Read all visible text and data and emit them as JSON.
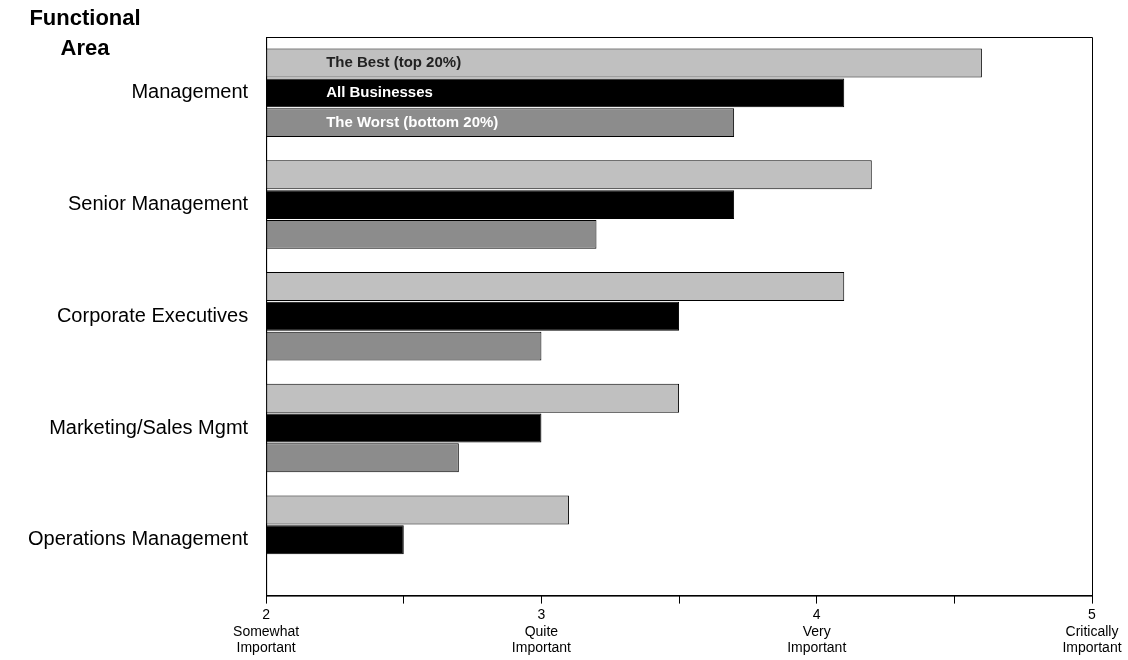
{
  "chart_data": {
    "type": "bar",
    "orientation": "horizontal",
    "ylabel": "Functional Area",
    "categories": [
      "Management",
      "Senior Management",
      "Corporate Executives",
      "Marketing/Sales Mgmt",
      "Operations Management"
    ],
    "series": [
      {
        "name": "The Best (top 20%)",
        "color": "#c0c0c0",
        "values": [
          4.6,
          4.2,
          4.1,
          3.5,
          3.1
        ]
      },
      {
        "name": "All Businesses",
        "color": "#000000",
        "values": [
          4.1,
          3.7,
          3.5,
          3.0,
          2.5
        ]
      },
      {
        "name": "The Worst (bottom 20%)",
        "color": "#8c8c8c",
        "values": [
          3.7,
          3.2,
          3.0,
          2.7,
          null
        ]
      }
    ],
    "xlim": [
      2,
      5
    ],
    "xticks": [
      {
        "value": 2,
        "label": "2\nSomewhat\nImportant"
      },
      {
        "value": 2.5,
        "label": null
      },
      {
        "value": 3,
        "label": "3\nQuite\nImportant"
      },
      {
        "value": 3.5,
        "label": null
      },
      {
        "value": 4,
        "label": "4\nVery\nImportant"
      },
      {
        "value": 4.5,
        "label": null
      },
      {
        "value": 5,
        "label": "5\nCritically\nImportant"
      }
    ],
    "grid": false,
    "legend": false
  }
}
